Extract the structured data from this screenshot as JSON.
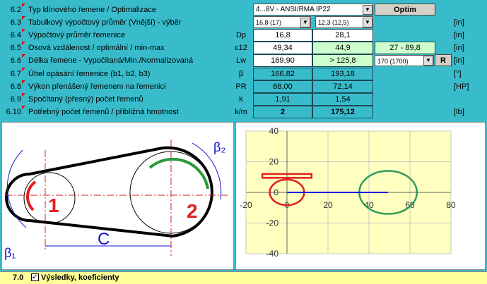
{
  "rows": [
    {
      "number": "6.2",
      "label": "Typ klínového řemene / Optimalizace",
      "select": "4...8V - ANSI/RMA IP22",
      "button": "Optim"
    },
    {
      "number": "6.3",
      "label": "Tabulkový výpočtový průměr (Vnější) - výběr",
      "selects": [
        "16,8 (17)",
        "12,3 (12,5)"
      ],
      "unit": "[in]"
    },
    {
      "number": "6.4",
      "label": "Výpočtový průměr řemenice",
      "symbol": "Dp",
      "values": [
        "16,8",
        "28,1"
      ],
      "unit": "[in]"
    },
    {
      "number": "6.5",
      "label": "Osová vzdálenost / optimální / min-max",
      "symbol": "c12",
      "values": [
        "49,34",
        "44,9",
        "27 - 89,8"
      ],
      "unit": "[in]"
    },
    {
      "number": "6.6",
      "label": "Délka řemene - Vypočítaná/Min./Normalizovaná",
      "symbol": "Lw",
      "values": [
        "169,90",
        "> 125,8"
      ],
      "select": "170 (1700)",
      "button": "R",
      "unit": "[in]"
    },
    {
      "number": "6.7",
      "label": "Úhel opásání řemenice (b1, b2, b3)",
      "symbol": "β",
      "values": [
        "166,82",
        "193,18"
      ],
      "unit": "[°]"
    },
    {
      "number": "6.8",
      "label": "Výkon přenášený řemenem na řemenici",
      "symbol": "PR",
      "values": [
        "68,00",
        "72,14"
      ],
      "unit": "[HP]"
    },
    {
      "number": "6.9",
      "label": "Spočítaný (přesný) počet řemenů",
      "symbol": "k",
      "values": [
        "1,91",
        "1,54"
      ]
    },
    {
      "number": "6.10",
      "label": "Potřebný počet řemenů / přibližná hmotnost",
      "symbol": "k/m",
      "values": [
        "2",
        "175,12"
      ],
      "unit": "[lb]"
    }
  ],
  "diagram": {
    "pulley_1": "1",
    "pulley_2": "2",
    "distance": "C",
    "angle_1": "β₁",
    "angle_2": "β₂"
  },
  "chart": {
    "xlim": [
      -20,
      80
    ],
    "ylim": [
      -40,
      40
    ],
    "xticks": [
      -20,
      0,
      20,
      40,
      60,
      80
    ],
    "yticks": [
      -40,
      -20,
      0,
      20,
      40
    ],
    "circles": [
      {
        "x": 0,
        "y": 0,
        "r": 8.4,
        "color": "#e02020"
      },
      {
        "x": 49.34,
        "y": 0,
        "r": 14.05,
        "color": "#2e9a5a"
      }
    ],
    "segment": {
      "x": [
        0,
        49.34
      ],
      "y": [
        0,
        0
      ],
      "color": "#1010e0"
    },
    "rect": {
      "x": [
        -12,
        12
      ],
      "y": [
        9.5,
        12
      ],
      "color": "#e02020"
    }
  },
  "footer": {
    "number": "7.0",
    "label": "Výsledky, koeficienty"
  }
}
